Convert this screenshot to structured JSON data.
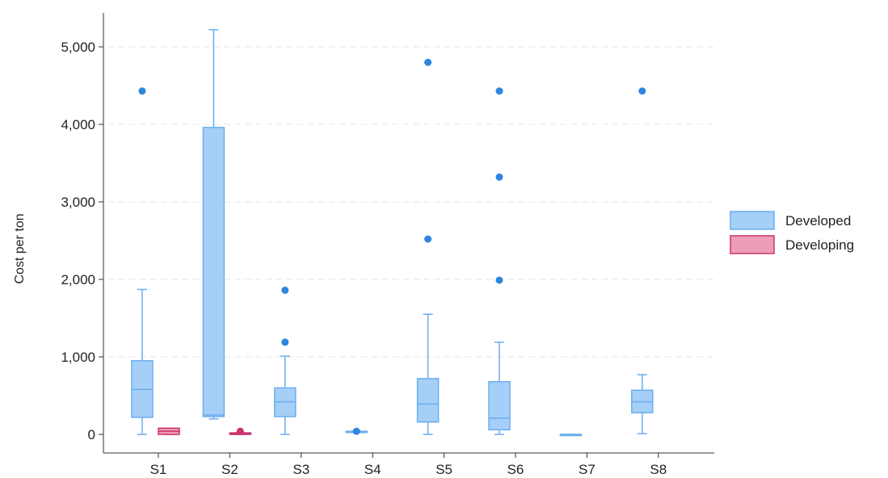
{
  "chart_data": {
    "type": "box",
    "title": "",
    "xlabel": "",
    "ylabel": "Cost per ton",
    "ylim": [
      0,
      5300
    ],
    "yticks": [
      0,
      1000,
      2000,
      3000,
      4000,
      5000
    ],
    "ytick_labels": [
      "0",
      "1,000",
      "2,000",
      "3,000",
      "4,000",
      "5,000"
    ],
    "grid": "horizontal dashed",
    "legend_position": "right",
    "categories": [
      "S1",
      "S2",
      "S3",
      "S4",
      "S5",
      "S6",
      "S7",
      "S8"
    ],
    "series": [
      {
        "name": "Developed",
        "color": "#6aaef0",
        "fill": "#a6cff7",
        "boxes": [
          {
            "category": "S1",
            "whisker_low": 0,
            "q1": 220,
            "median": 580,
            "q3": 950,
            "whisker_high": 1870,
            "outliers": [
              4430
            ]
          },
          {
            "category": "S2",
            "whisker_low": 200,
            "q1": 230,
            "median": 250,
            "q3": 3960,
            "whisker_high": 5220,
            "outliers": []
          },
          {
            "category": "S3",
            "whisker_low": 0,
            "q1": 230,
            "median": 420,
            "q3": 600,
            "whisker_high": 1010,
            "outliers": [
              1190,
              1860
            ]
          },
          {
            "category": "S4",
            "whisker_low": 40,
            "q1": 40,
            "median": 40,
            "q3": 40,
            "whisker_high": 40,
            "outliers": [
              40
            ]
          },
          {
            "category": "S5",
            "whisker_low": 0,
            "q1": 160,
            "median": 390,
            "q3": 720,
            "whisker_high": 1550,
            "outliers": [
              2520,
              4800
            ]
          },
          {
            "category": "S6",
            "whisker_low": 0,
            "q1": 60,
            "median": 210,
            "q3": 680,
            "whisker_high": 1190,
            "outliers": [
              1990,
              3320,
              4430
            ]
          },
          {
            "category": "S7",
            "whisker_low": 0,
            "q1": 0,
            "median": 0,
            "q3": 0,
            "whisker_high": 0,
            "outliers": []
          },
          {
            "category": "S8",
            "whisker_low": 10,
            "q1": 280,
            "median": 420,
            "q3": 570,
            "whisker_high": 770,
            "outliers": [
              4430
            ]
          }
        ]
      },
      {
        "name": "Developing",
        "color": "#c8336e",
        "fill": "#ee9db6",
        "boxes": [
          {
            "category": "S1",
            "whisker_low": 0,
            "q1": 0,
            "median": 40,
            "q3": 80,
            "whisker_high": 80,
            "outliers": []
          },
          {
            "category": "S2",
            "whisker_low": 0,
            "q1": 0,
            "median": 10,
            "q3": 20,
            "whisker_high": 20,
            "outliers": [
              40
            ]
          }
        ]
      }
    ]
  }
}
